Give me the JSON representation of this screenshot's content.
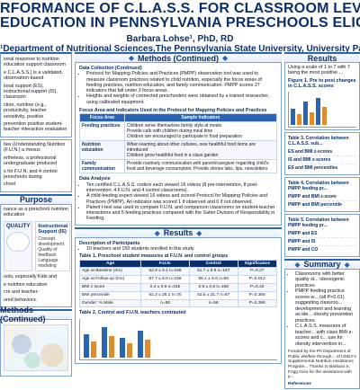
{
  "header": {
    "title_line1": "RFORMANCE OF C.L.A.S.S. FOR CLASSROOM LEVEL ASSESSMENT OF NUTRITI",
    "title_line2": "EDUCATION IN PENNSYLVANIA PRESCHOOLS ELIGIBLE FOR SNAP EDUCATION",
    "author": "Barbara Lohse¹, PhD, RD",
    "affiliation": "¹Department of Nutritional Sciences,The Pennsylvania State University, University Park, PA 16802"
  },
  "sections": {
    "methods_title": "Methods (Continued)",
    "results_title": "Results",
    "purpose_title": "Purpose",
    "summary_title": "Summary"
  },
  "left": {
    "intro_1": "ional response to nutrition education support classroom",
    "intro_2": "e C.L.A.S.S.) is a validated, observation-based",
    "intro_3": "ional support (ES), instructional support (IS), classroom",
    "intro_4": "ction, nutrition (e.g., productivity, teacher sensitivity, positive",
    "intro_5": "prevention positive student-teacher interaction evaluation",
    "p2_1": "ties (Understanding Nutrition (F.U.N.) a rhesus",
    "p2_2": "ertheless, a professional undergraduate produced",
    "p2_3": "s for F.U.N. and 4 control preschools during",
    "p2_4": "chool.",
    "purpose_line": "nance as a preschool nutrition education",
    "quality_label": "QUALITY",
    "inst_support": "Instructional Support (IS)",
    "inst_support_sub": "Concept development\nQuality of feedback\nLanguage modeling",
    "left_small_1": "ools, especially Kids and",
    "left_small_2": "e nutrition education",
    "left_small_3": "cre and teacher-",
    "left_small_4": "ured behaviors."
  },
  "middle": {
    "data_collection_title": "Data Collection (Continued)",
    "data_collection_p1": "Protocol for Mapping Policies and Practices (PMPP) observation tool was used to measure classroom practices related to child nutrition, especially the focus areas of feeding practices, nutrition education, and family communication. PMPP scores 27 indicators that fall under 3 focus areas.",
    "data_collection_p2": "Heights and weights of connected preschoolers were obtained by a trained researcher, using calibrated equipment.",
    "table1_title": "Focus Area and Indicators Used in the Protocol for Mapping Policies and Practices",
    "table1": {
      "headers": [
        "Focus Area",
        "Sample Indicators"
      ],
      "rows": [
        [
          "Feeding practices",
          "Children serve themselves family style at meals\nProvide cafe with children during meal time\nChildren are encouraged to participate in food preparation"
        ],
        [
          "Nutrition education",
          "When learning about other cultures, new healthful food items are introduced\nChildren grow healthful food in a class garden"
        ],
        [
          "Family communication",
          "Provide routinely communication with parent/caregiver regarding child's food and beverage consumption; Provide stories labs, tips, newsletters"
        ]
      ]
    },
    "data_analysis_title": "Data Analysis",
    "analysis_1": "Ten certified C.L.A.S.S. coders each viewed 16 videos (8 pre-intervention, 8 post-intervention: 4 F.U.N. and 4 control classrooms).",
    "analysis_2": "A child-feeding expert viewed 16 videos and scored Protocol for Mapping Policies and Practices (PMPP). An indicator was scored 1 if observed and 0 if not observed.",
    "analysis_3": "Paired t-test was used to compare F.U.N. and comparison classrooms on student-teacher interactions and 5 feeding practices compared with the Satter Division of Responsibility in Feeding.",
    "results_intro_1": "Description of Participants",
    "results_intro_2": "10 teachers and 150 students enrolled in this study.",
    "table2_title": "Table 1. Preschool student measures at F.U.N. and control groups",
    "table2": {
      "headers": [
        "Age",
        "F.U.N.",
        "Control",
        "Significance"
      ],
      "rows": [
        [
          "Age at Baseline (mo)",
          "52.9 ± 9.1 n=156",
          "51.7 ± 9.9 n=187",
          "P=0.27"
        ],
        [
          "Age at Follow-up (mo)",
          "57.7 ± 8.8 n=156",
          "55.1 ± 9.6 n=88",
          "P=0.012"
        ],
        [
          "BMI z score",
          "0.4 ± 0.6 n=155",
          "0.5 ± 0.6 n=186",
          "P=0.42"
        ],
        [
          "BMI percentile",
          "61.2 ± 26.1 n=70",
          "52.5 ± 31.7 n=87",
          "P=0.366"
        ],
        [
          "Gender: % Male",
          "n=58",
          "n=56",
          "P=0.396"
        ]
      ]
    },
    "table3_title": "Table 2. Control and F.U.N. teachers contrasted",
    "chart_labels": {
      "fun": "F.U.N.",
      "control": "Control"
    }
  },
  "right": {
    "results_note": "Using a scale of 1 to 7 with 7 being the most positive ...",
    "figure1_title": "Figure 1. Pre to post changes in C.L.A.S.S. scores",
    "corr1_title": "Table 3. Correlation between C.L.A.S.S. sub...",
    "corr_rows": [
      {
        "k": "ES and BMI z-scores",
        "v": ""
      },
      {
        "k": "IS and BMI z-scores",
        "v": ""
      },
      {
        "k": "ES and BMI percentiles",
        "v": ""
      }
    ],
    "corr2_title": "Table 4. Correlation between PMPP feeding pr...",
    "corr2_rows": [
      {
        "k": "PMPP and BMI z-score",
        "v": ""
      },
      {
        "k": "PMPP and BMI percentile",
        "v": ""
      }
    ],
    "corr3_title": "Table 5. Correlation between PMPP feeding pr...",
    "corr3_rows": [
      {
        "k": "PMPP and ES",
        "v": ""
      },
      {
        "k": "PMPP and IS",
        "v": ""
      },
      {
        "k": "PMPP and CO",
        "v": ""
      }
    ],
    "summary_bullets": [
      "Classrooms with better quality st... obesogenic practices.",
      "PMPP feeding practice scores w... (all P<0.01) suggesting classroo... development and learning as ide... obesity prevention practices.",
      "C.L.A.S.S. measures of teacher... with class BMI z-scores and c... use for obesity intervention in..."
    ],
    "funding": "Funded by the PA Department of Public Welfare through... of USDA's Supplemental Nutrition Assistance Program... Thanks to Barbara S. Fogg Giza for the assistance with p...",
    "refs_title": "References"
  }
}
